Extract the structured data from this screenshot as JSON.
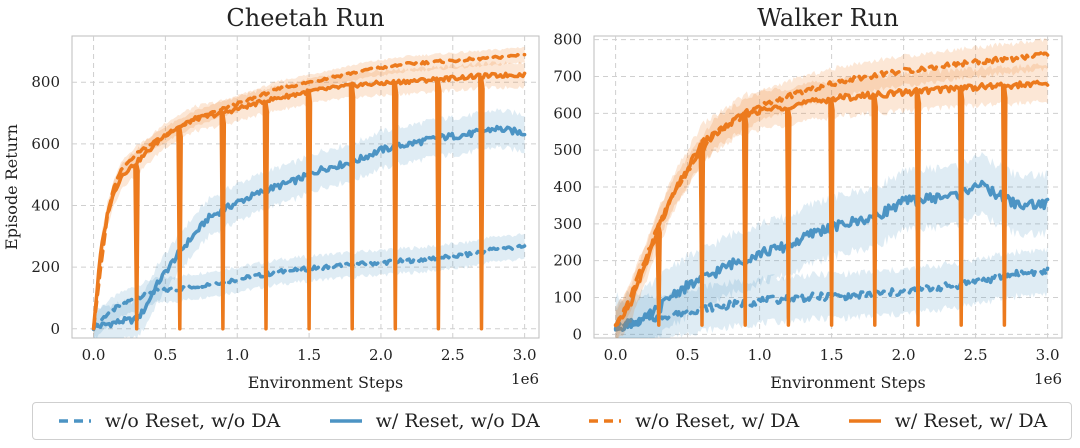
{
  "colors": {
    "blue": "#4c94c4",
    "orange": "#ec7a1d",
    "grid": "#cfcfcf",
    "frame": "#bdbdbd",
    "text": "#222222"
  },
  "legend": [
    {
      "label": "w/o Reset, w/o DA",
      "color": "#4c94c4",
      "dash": true
    },
    {
      "label": "w/ Reset, w/o DA",
      "color": "#4c94c4",
      "dash": false
    },
    {
      "label": "w/o Reset, w/ DA",
      "color": "#ec7a1d",
      "dash": true
    },
    {
      "label": "w/ Reset, w/ DA",
      "color": "#ec7a1d",
      "dash": false
    }
  ],
  "chart_data": [
    {
      "type": "line",
      "title": "Cheetah Run",
      "xlabel": "Environment Steps",
      "ylabel": "Episode Return",
      "x_multiplier_label": "1e6",
      "xlim": [
        -0.15,
        3.1
      ],
      "ylim": [
        -30,
        950
      ],
      "xticks": [
        0.0,
        0.5,
        1.0,
        1.5,
        2.0,
        2.5,
        3.0
      ],
      "xtick_labels": [
        "0.0",
        "0.5",
        "1.0",
        "1.5",
        "2.0",
        "2.5",
        "3.0"
      ],
      "yticks": [
        0,
        200,
        400,
        600,
        800
      ],
      "ytick_labels": [
        "0",
        "200",
        "400",
        "600",
        "800"
      ],
      "grid": true,
      "reset_points": [
        0.3,
        0.6,
        0.9,
        1.2,
        1.5,
        1.8,
        2.1,
        2.4,
        2.7
      ],
      "series": [
        {
          "name": "w/o Reset, w/o DA",
          "color": "#4c94c4",
          "dash": true,
          "x": [
            0.0,
            0.1,
            0.2,
            0.3,
            0.4,
            0.6,
            0.8,
            1.0,
            1.3,
            1.6,
            2.0,
            2.3,
            2.6,
            2.8,
            3.0
          ],
          "y": [
            5,
            50,
            80,
            100,
            120,
            130,
            145,
            160,
            185,
            200,
            215,
            225,
            240,
            260,
            265
          ],
          "band": 40
        },
        {
          "name": "w/ Reset, w/o DA",
          "color": "#4c94c4",
          "dash": false,
          "x": [
            0.0,
            0.1,
            0.2,
            0.3,
            0.35,
            0.45,
            0.6,
            0.8,
            1.0,
            1.2,
            1.4,
            1.6,
            1.8,
            2.0,
            2.2,
            2.4,
            2.6,
            2.8,
            3.0
          ],
          "y": [
            5,
            15,
            25,
            30,
            60,
            150,
            250,
            360,
            410,
            450,
            480,
            520,
            540,
            580,
            600,
            620,
            630,
            650,
            635
          ],
          "band": 60
        },
        {
          "name": "w/o Reset, w/ DA",
          "color": "#ec7a1d",
          "dash": true,
          "x": [
            0.0,
            0.05,
            0.1,
            0.15,
            0.2,
            0.3,
            0.5,
            0.7,
            1.0,
            1.3,
            1.6,
            1.9,
            2.2,
            2.5,
            2.8,
            3.0
          ],
          "y": [
            5,
            200,
            380,
            470,
            520,
            570,
            630,
            680,
            730,
            780,
            810,
            840,
            860,
            870,
            880,
            890
          ],
          "band": 25
        },
        {
          "name": "w/ Reset, w/ DA",
          "color": "#ec7a1d",
          "dash": false,
          "x": [
            0.0,
            0.05,
            0.1,
            0.15,
            0.2,
            0.3,
            0.5,
            0.7,
            0.9,
            1.2,
            1.5,
            1.8,
            2.1,
            2.4,
            2.7,
            3.0
          ],
          "y": [
            5,
            250,
            380,
            450,
            500,
            540,
            630,
            680,
            700,
            740,
            770,
            790,
            800,
            810,
            820,
            825
          ],
          "band": 40,
          "reset_drop_to": 0
        }
      ]
    },
    {
      "type": "line",
      "title": "Walker Run",
      "xlabel": "Environment Steps",
      "ylabel": "",
      "x_multiplier_label": "1e6",
      "xlim": [
        -0.15,
        3.1
      ],
      "ylim": [
        -10,
        810
      ],
      "xticks": [
        0.0,
        0.5,
        1.0,
        1.5,
        2.0,
        2.5,
        3.0
      ],
      "xtick_labels": [
        "0.0",
        "0.5",
        "1.0",
        "1.5",
        "2.0",
        "2.5",
        "3.0"
      ],
      "yticks": [
        0,
        100,
        200,
        300,
        400,
        500,
        600,
        700,
        800
      ],
      "ytick_labels": [
        "0",
        "100",
        "200",
        "300",
        "400",
        "500",
        "600",
        "700",
        "800"
      ],
      "grid": true,
      "reset_points": [
        0.3,
        0.6,
        0.9,
        1.2,
        1.5,
        1.8,
        2.1,
        2.4,
        2.7
      ],
      "series": [
        {
          "name": "w/o Reset, w/o DA",
          "color": "#4c94c4",
          "dash": true,
          "x": [
            0.0,
            0.2,
            0.4,
            0.6,
            0.8,
            1.0,
            1.3,
            1.6,
            2.0,
            2.3,
            2.6,
            2.8,
            3.0
          ],
          "y": [
            20,
            40,
            55,
            70,
            80,
            90,
            100,
            105,
            115,
            130,
            150,
            165,
            170
          ],
          "band": 60
        },
        {
          "name": "w/ Reset, w/o DA",
          "color": "#4c94c4",
          "dash": false,
          "x": [
            0.0,
            0.2,
            0.3,
            0.4,
            0.6,
            0.8,
            1.0,
            1.2,
            1.4,
            1.6,
            1.8,
            2.0,
            2.2,
            2.4,
            2.5,
            2.7,
            2.8,
            3.0
          ],
          "y": [
            20,
            40,
            70,
            110,
            150,
            190,
            220,
            240,
            280,
            300,
            320,
            360,
            370,
            380,
            410,
            370,
            350,
            355
          ],
          "band": 80
        },
        {
          "name": "w/o Reset, w/ DA",
          "color": "#ec7a1d",
          "dash": true,
          "x": [
            0.0,
            0.1,
            0.2,
            0.3,
            0.4,
            0.5,
            0.7,
            1.0,
            1.3,
            1.6,
            1.9,
            2.2,
            2.5,
            2.8,
            3.0
          ],
          "y": [
            20,
            100,
            200,
            300,
            380,
            440,
            550,
            620,
            660,
            690,
            710,
            725,
            740,
            750,
            760
          ],
          "band": 40
        },
        {
          "name": "w/ Reset, w/ DA",
          "color": "#ec7a1d",
          "dash": false,
          "x": [
            0.0,
            0.1,
            0.2,
            0.3,
            0.4,
            0.5,
            0.6,
            0.9,
            1.2,
            1.5,
            1.8,
            2.1,
            2.4,
            2.7,
            3.0
          ],
          "y": [
            20,
            80,
            180,
            290,
            380,
            450,
            520,
            600,
            620,
            640,
            650,
            660,
            670,
            675,
            680
          ],
          "band": 50,
          "reset_drop_to": 25
        }
      ]
    }
  ]
}
